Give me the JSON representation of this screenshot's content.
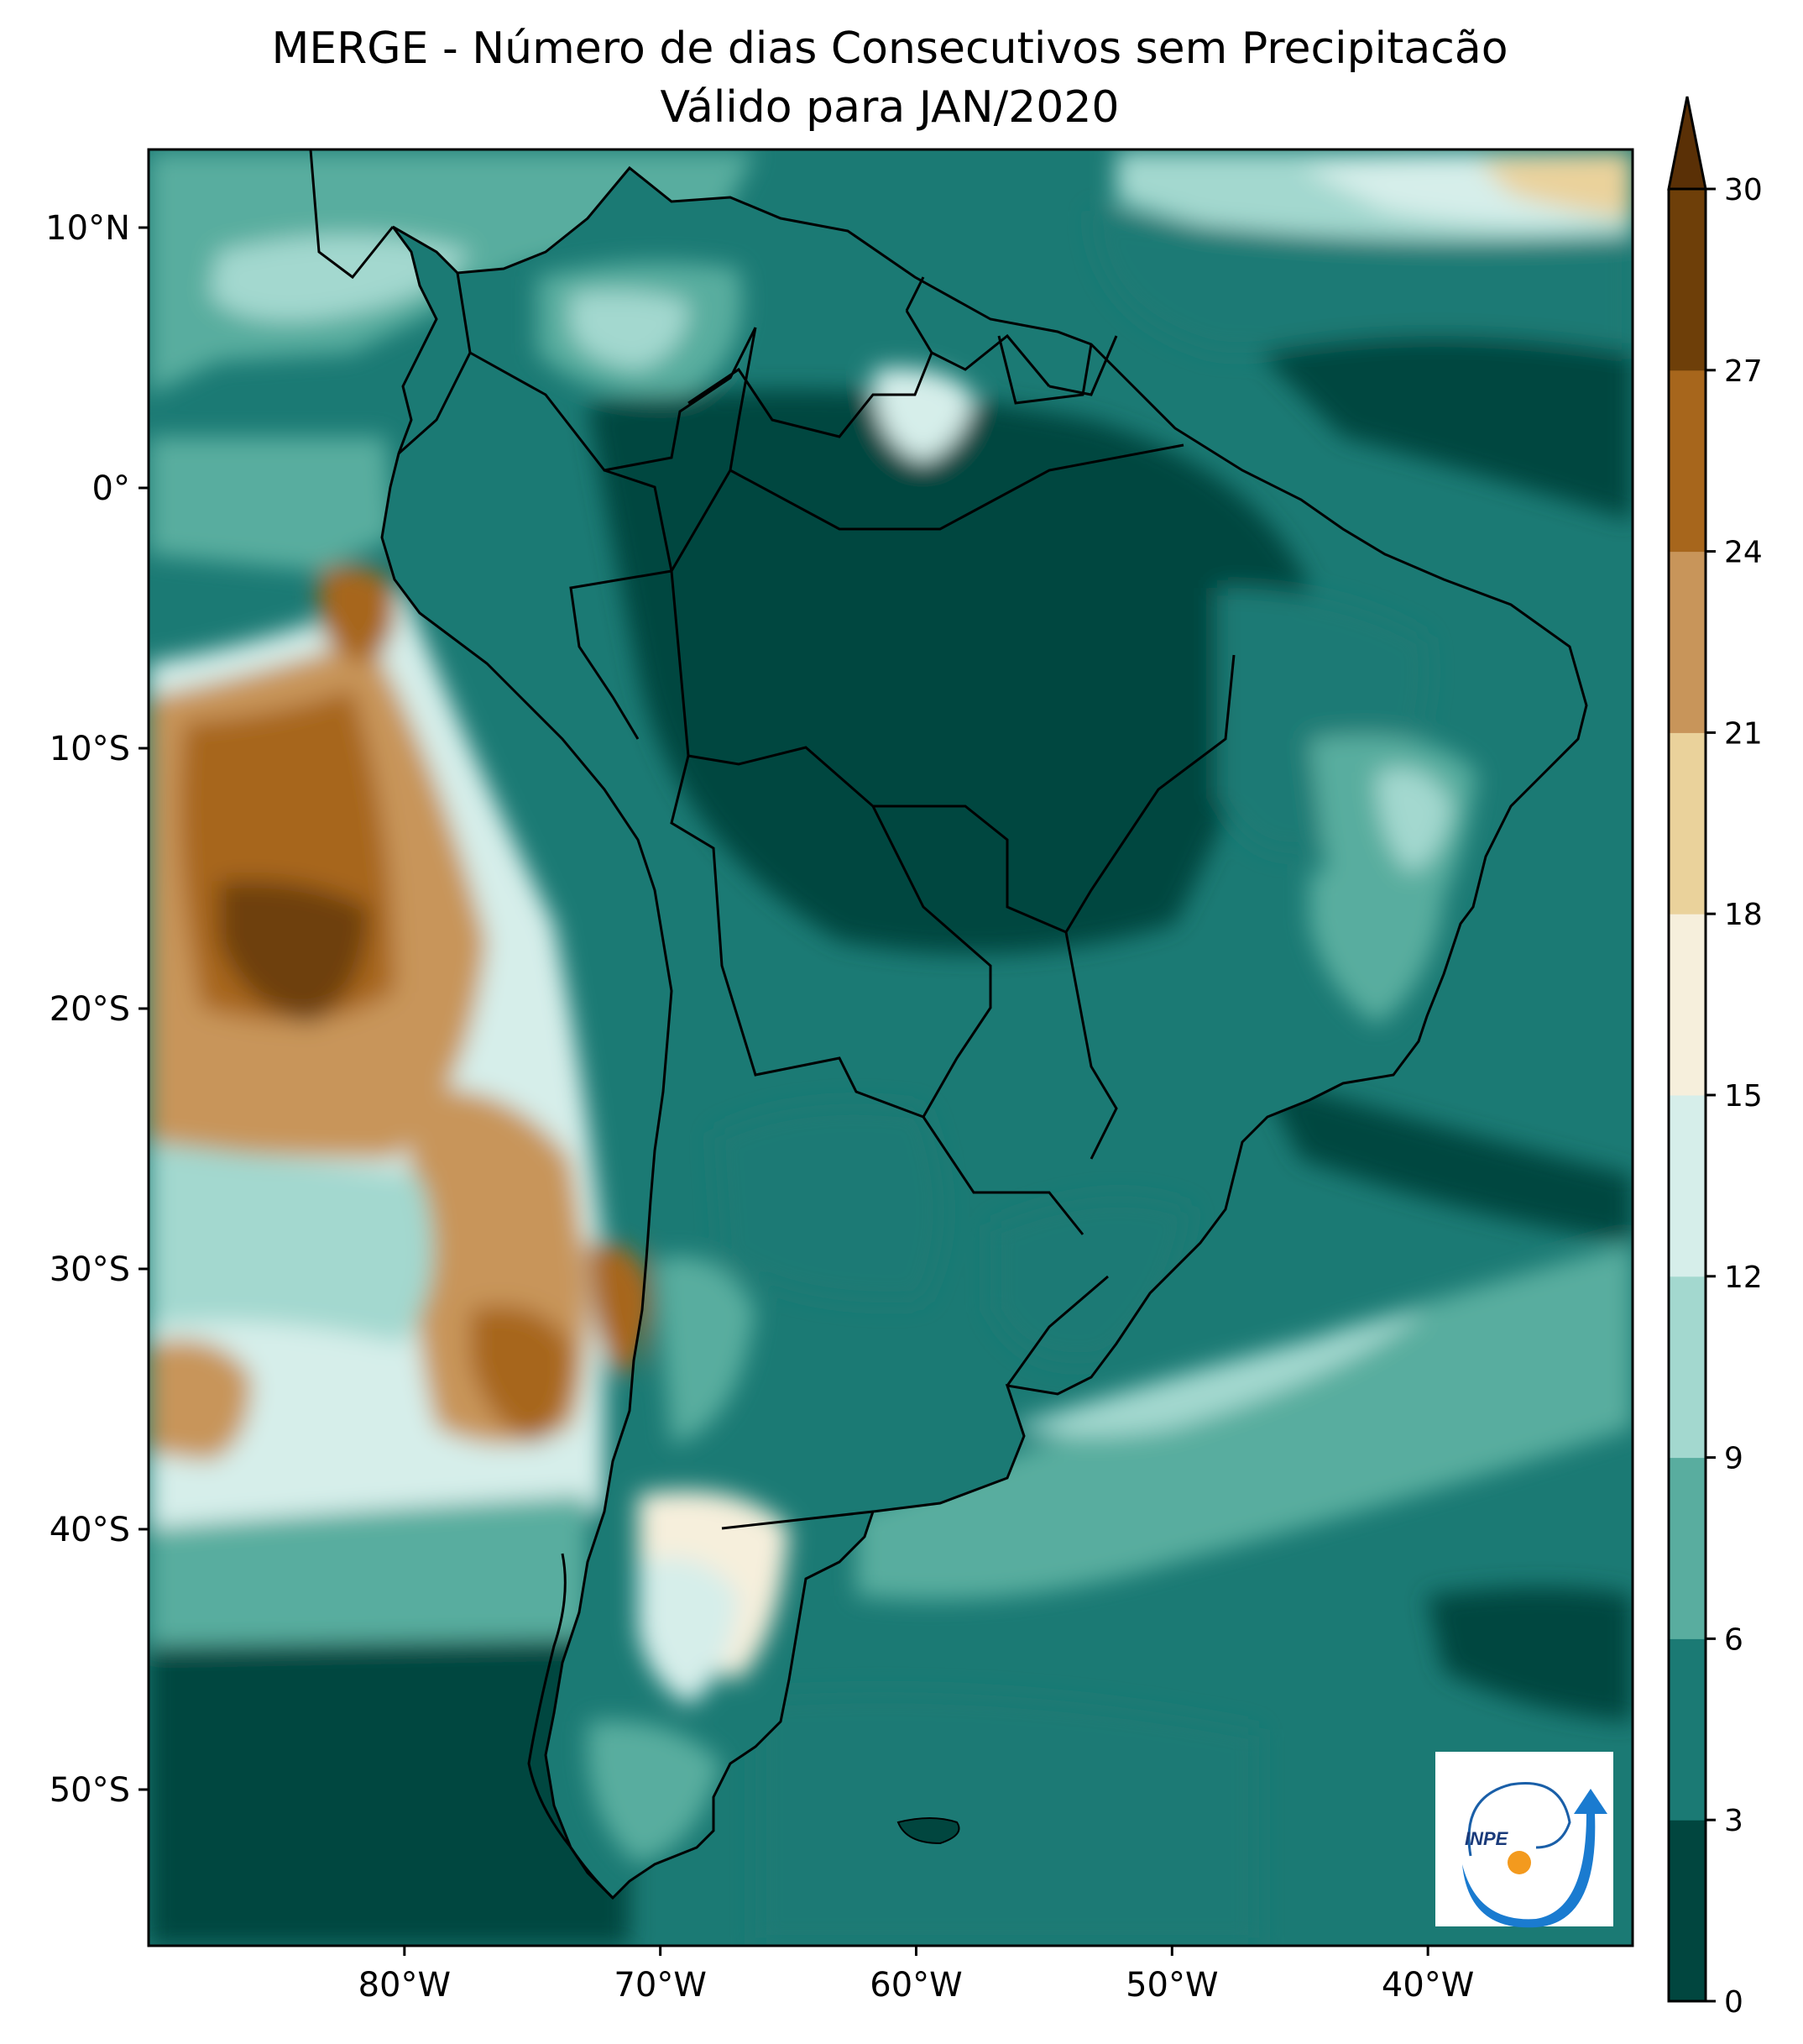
{
  "title": {
    "line1": "MERGE - Número de dias Consecutivos sem Precipitacão",
    "line2": "Válido para JAN/2020"
  },
  "map": {
    "lon_range": [
      -90,
      -32
    ],
    "lat_range": [
      -56,
      13
    ],
    "lat_ticks": [
      {
        "value": 10,
        "label": "10°N"
      },
      {
        "value": 0,
        "label": "0°"
      },
      {
        "value": -10,
        "label": "10°S"
      },
      {
        "value": -20,
        "label": "20°S"
      },
      {
        "value": -30,
        "label": "30°S"
      },
      {
        "value": -40,
        "label": "40°S"
      },
      {
        "value": -50,
        "label": "50°S"
      }
    ],
    "lon_ticks": [
      {
        "value": -80,
        "label": "80°W"
      },
      {
        "value": -70,
        "label": "70°W"
      },
      {
        "value": -60,
        "label": "60°W"
      },
      {
        "value": -50,
        "label": "50°W"
      },
      {
        "value": -40,
        "label": "40°W"
      }
    ]
  },
  "colorbar": {
    "levels": [
      0,
      3,
      6,
      9,
      12,
      15,
      18,
      21,
      24,
      27,
      30
    ],
    "labels": [
      "0",
      "3",
      "6",
      "9",
      "12",
      "15",
      "18",
      "21",
      "24",
      "27",
      "30"
    ],
    "colors": [
      "#01463f",
      "#1b7a74",
      "#59ad9f",
      "#a3d8cf",
      "#d6eeea",
      "#f6efdc",
      "#ead29b",
      "#c8955a",
      "#a7661c",
      "#6e3f09"
    ],
    "extend": "max"
  },
  "logo": {
    "text": "INPE"
  }
}
